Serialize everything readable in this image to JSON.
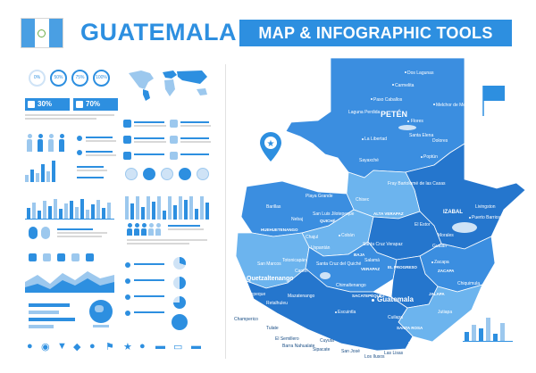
{
  "header": {
    "country": "GUATEMALA",
    "tools_label": "MAP & INFOGRAPHIC TOOLS"
  },
  "colors": {
    "accent": "#2d8fe0",
    "light": "#9cc8ee",
    "pale": "#cfe3f6",
    "map_main": "#3b8ee0",
    "map_dark": "#2576cd",
    "map_light": "#6cb4ee"
  },
  "infographic": {
    "percent_rings": [
      "0%",
      "50%",
      "75%",
      "100%"
    ],
    "stat_boxes": [
      "30%",
      "70%"
    ]
  },
  "map": {
    "large_labels": [
      "PETÉN",
      "IZABAL",
      "Guatemala"
    ],
    "departments": [
      "ALTA VERAPAZ",
      "QUICHÉ",
      "BAJA",
      "VERAPAZ",
      "EL PROGRESO",
      "HUEHUETENANGO",
      "SACATEPÉQUEZ",
      "SANTA ROSA",
      "JALAPA",
      "ZACAPA"
    ],
    "cities": [
      "Dos Lagunas",
      "Carmelita",
      "Paso Caballos",
      "Melchor de Mencos",
      "Laguna Perdida",
      "Flores",
      "Santa Elena",
      "Dolores",
      "La Libertad",
      "Sayaxché",
      "Poptún",
      "Playa Grande",
      "Chisec",
      "Fray Bartolomé de las Casas",
      "Livingston",
      "Puerto Barrios",
      "Barillas",
      "San Luis Jilotepeque",
      "Nebaj",
      "Cobán",
      "El Estor",
      "Morales",
      "Gualán",
      "Chajul",
      "Uspantán",
      "Santa Cruz Verapaz",
      "Salamá",
      "Zacapa",
      "Chiquimula",
      "San Marcos",
      "Totonicapán",
      "Santa Cruz del Quiché",
      "Cantel",
      "Quetzaltenango",
      "Chimaltenango",
      "Coatepeque",
      "Retalhuleu",
      "Mazatenango",
      "Escuintla",
      "Cuilapa",
      "Jutiapa",
      "Champerico",
      "Tulate",
      "El Semillero",
      "Barra Nahualate",
      "Sipacate",
      "San José",
      "Los Ilusos",
      "Jalpatagua",
      "Las Lisas",
      "Cuyuta"
    ]
  }
}
